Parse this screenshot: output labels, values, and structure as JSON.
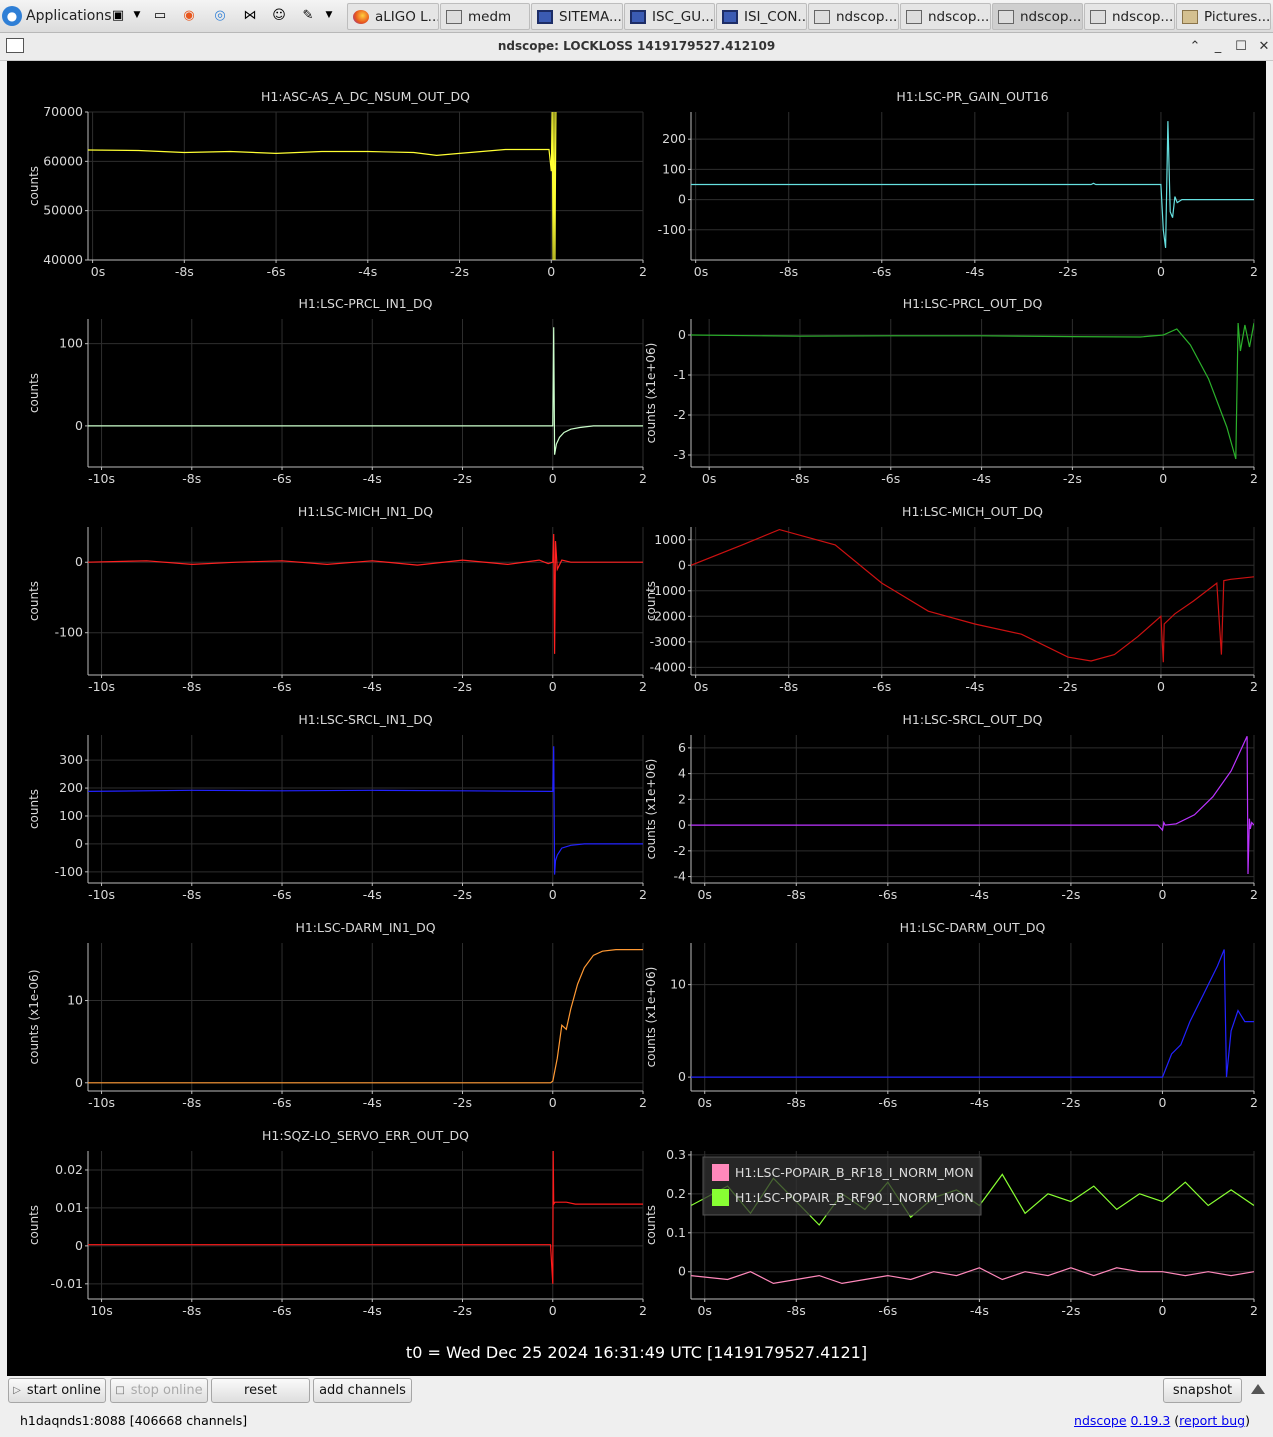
{
  "taskbar": {
    "apps_label": "Applications",
    "tasks": [
      {
        "label": "aLIGO L...",
        "icon": "firefox-icon"
      },
      {
        "label": "medm",
        "icon": "window-icon"
      },
      {
        "label": "SITEMA...",
        "icon": "terminal-icon"
      },
      {
        "label": "ISC_GU...",
        "icon": "terminal-icon"
      },
      {
        "label": "ISI_CON...",
        "icon": "terminal-icon"
      },
      {
        "label": "ndscop...",
        "icon": "window-icon"
      },
      {
        "label": "ndscop...",
        "icon": "window-icon"
      },
      {
        "label": "ndscop...",
        "icon": "window-icon"
      },
      {
        "label": "ndscop...",
        "icon": "window-icon"
      },
      {
        "label": "Pictures...",
        "icon": "folder-icon"
      }
    ]
  },
  "window": {
    "title": "ndscope: LOCKLOSS 1419179527.412109"
  },
  "t0_label": "t0 = Wed Dec 25 2024 16:31:49 UTC [1419179527.4121]",
  "buttons": {
    "start_online": "start online",
    "stop_online": "stop online",
    "reset": "reset",
    "add_channels": "add channels",
    "snapshot": "snapshot"
  },
  "status": {
    "server": "h1daqnds1:8088  [406668 channels]",
    "app_name": "ndscope",
    "version": "0.19.3",
    "report_open": "(",
    "report_bug": "report bug",
    "report_close": ")"
  },
  "colors": {
    "plot_background": "#000000",
    "grid": "#2e2e2e",
    "axis_text": "#d9d9d9"
  },
  "chart_data": [
    {
      "type": "line",
      "title": "H1:ASC-AS_A_DC_NSUM_OUT_DQ",
      "ylabel": "counts",
      "color": "#ffff33",
      "xlim": [
        -10.1,
        2
      ],
      "ylim": [
        40000,
        70000
      ],
      "yticks": [
        40000,
        50000,
        60000,
        70000
      ],
      "xticks": [
        -10,
        -8,
        -6,
        -4,
        -2,
        0,
        2
      ],
      "xtick_labels": [
        "0s",
        "-8s",
        "-6s",
        "-4s",
        "-2s",
        "0",
        "2"
      ],
      "x": [
        -10.1,
        -9,
        -8,
        -7,
        -6,
        -5,
        -4,
        -3,
        -2.5,
        -2,
        -1,
        -0.05,
        0,
        0.02,
        0.04,
        0.06,
        0.08,
        0.1
      ],
      "y": [
        62300,
        62200,
        61800,
        62000,
        61600,
        62000,
        62000,
        61800,
        61200,
        61600,
        62400,
        62400,
        58000,
        70000,
        40000,
        70000,
        40000,
        70000
      ]
    },
    {
      "type": "line",
      "title": "H1:LSC-PR_GAIN_OUT16",
      "ylabel": "",
      "color": "#66e0e0",
      "xlim": [
        -10.1,
        2
      ],
      "ylim": [
        -200,
        290
      ],
      "yticks": [
        -100,
        0,
        100,
        200
      ],
      "xticks": [
        -10,
        -8,
        -6,
        -4,
        -2,
        0,
        2
      ],
      "xtick_labels": [
        "0s",
        "-8s",
        "-6s",
        "-4s",
        "-2s",
        "0",
        "2"
      ],
      "x": [
        -10.1,
        -2,
        -1.5,
        -1.45,
        -1.4,
        0,
        0.05,
        0.1,
        0.15,
        0.2,
        0.25,
        0.3,
        0.35,
        0.45,
        0.6,
        0.8,
        1,
        2
      ],
      "y": [
        50,
        50,
        50,
        54,
        50,
        50,
        -100,
        -160,
        260,
        -40,
        -60,
        10,
        -10,
        0,
        0,
        0,
        0,
        0
      ]
    },
    {
      "type": "line",
      "title": "H1:LSC-PRCL_IN1_DQ",
      "ylabel": "counts",
      "color": "#ccffcc",
      "xlim": [
        -10.3,
        2
      ],
      "ylim": [
        -50,
        130
      ],
      "yticks": [
        0,
        100
      ],
      "xticks": [
        -10,
        -8,
        -6,
        -4,
        -2,
        0,
        2
      ],
      "xtick_labels": [
        "-10s",
        "-8s",
        "-6s",
        "-4s",
        "-2s",
        "0",
        "2"
      ],
      "x": [
        -10.3,
        -5,
        -0.05,
        0,
        0.02,
        0.04,
        0.08,
        0.15,
        0.25,
        0.4,
        0.6,
        0.9,
        2
      ],
      "y": [
        0,
        0,
        0,
        0,
        120,
        -35,
        -22,
        -14,
        -8,
        -4,
        -2,
        0,
        0
      ]
    },
    {
      "type": "line",
      "title": "H1:LSC-PRCL_OUT_DQ",
      "ylabel": "counts (x1e+06)",
      "color": "#2bb02b",
      "xlim": [
        -10.4,
        2
      ],
      "ylim": [
        -3.3,
        0.4
      ],
      "yticks": [
        -3,
        -2,
        -1,
        0
      ],
      "xticks": [
        -10,
        -8,
        -6,
        -4,
        -2,
        0,
        2
      ],
      "xtick_labels": [
        "0s",
        "-8s",
        "-6s",
        "-4s",
        "-2s",
        "0",
        "2"
      ],
      "x": [
        -10.4,
        -8,
        -6,
        -4,
        -2,
        -0.5,
        0,
        0.3,
        0.6,
        1,
        1.4,
        1.6,
        1.65,
        1.7,
        1.8,
        1.9,
        2
      ],
      "y": [
        0,
        -0.03,
        -0.02,
        -0.02,
        -0.04,
        -0.05,
        0,
        0.15,
        -0.25,
        -1.1,
        -2.3,
        -3.1,
        0.3,
        -0.4,
        0.25,
        -0.3,
        0.3
      ]
    },
    {
      "type": "line",
      "title": "H1:LSC-MICH_IN1_DQ",
      "ylabel": "counts",
      "color": "#ff2020",
      "xlim": [
        -10.3,
        2
      ],
      "ylim": [
        -160,
        50
      ],
      "yticks": [
        -100,
        0
      ],
      "xticks": [
        -10,
        -8,
        -6,
        -4,
        -2,
        0,
        2
      ],
      "xtick_labels": [
        "-10s",
        "-8s",
        "-6s",
        "-4s",
        "-2s",
        "0",
        "2"
      ],
      "x": [
        -10.3,
        -9,
        -8,
        -7,
        -6,
        -5,
        -4,
        -3,
        -2,
        -1,
        -0.3,
        -0.1,
        0,
        0.02,
        0.04,
        0.06,
        0.1,
        0.2,
        0.4,
        2
      ],
      "y": [
        0,
        2,
        -3,
        0,
        2,
        -3,
        2,
        -4,
        3,
        -3,
        3,
        -2,
        0,
        40,
        -130,
        30,
        -10,
        3,
        0,
        0
      ]
    },
    {
      "type": "line",
      "title": "H1:LSC-MICH_OUT_DQ",
      "ylabel": "counts",
      "color": "#cc1111",
      "xlim": [
        -10.1,
        2
      ],
      "ylim": [
        -4300,
        1500
      ],
      "yticks": [
        -4000,
        -3000,
        -2000,
        -1000,
        0,
        1000
      ],
      "xticks": [
        -10,
        -8,
        -6,
        -4,
        -2,
        0,
        2
      ],
      "xtick_labels": [
        "0s",
        "-8s",
        "-6s",
        "-4s",
        "-2s",
        "0",
        "2"
      ],
      "x": [
        -10.1,
        -9,
        -8.2,
        -7,
        -6,
        -5,
        -4,
        -3,
        -2,
        -1.5,
        -1,
        -0.5,
        0,
        0.05,
        0.07,
        0.3,
        0.7,
        1.2,
        1.3,
        1.35,
        1.5,
        2
      ],
      "y": [
        0,
        800,
        1400,
        800,
        -700,
        -1800,
        -2300,
        -2700,
        -3600,
        -3750,
        -3500,
        -2800,
        -2000,
        -3800,
        -2300,
        -1900,
        -1400,
        -700,
        -3500,
        -600,
        -550,
        -450
      ]
    },
    {
      "type": "line",
      "title": "H1:LSC-SRCL_IN1_DQ",
      "ylabel": "counts",
      "color": "#2222ff",
      "xlim": [
        -10.3,
        2
      ],
      "ylim": [
        -140,
        390
      ],
      "yticks": [
        -100,
        0,
        100,
        200,
        300
      ],
      "xticks": [
        -10,
        -8,
        -6,
        -4,
        -2,
        0,
        2
      ],
      "xtick_labels": [
        "-10s",
        "-8s",
        "-6s",
        "-4s",
        "-2s",
        "0",
        "2"
      ],
      "x": [
        -10.3,
        -8,
        -6,
        -4,
        -2,
        -0.05,
        0,
        0.02,
        0.04,
        0.06,
        0.1,
        0.2,
        0.4,
        0.7,
        2
      ],
      "y": [
        188,
        192,
        190,
        192,
        190,
        188,
        188,
        350,
        -110,
        -60,
        -40,
        -15,
        -5,
        0,
        0
      ]
    },
    {
      "type": "line",
      "title": "H1:LSC-SRCL_OUT_DQ",
      "ylabel": "counts (x1e+06)",
      "color": "#bb33ff",
      "xlim": [
        -10.3,
        2
      ],
      "ylim": [
        -4.5,
        7
      ],
      "yticks": [
        -4,
        -2,
        0,
        2,
        4,
        6
      ],
      "xticks": [
        -10,
        -8,
        -6,
        -4,
        -2,
        0,
        2
      ],
      "xtick_labels": [
        "0s",
        "-8s",
        "-6s",
        "-4s",
        "-2s",
        "0",
        "2"
      ],
      "x": [
        -10.3,
        -5,
        -0.1,
        0,
        0.03,
        0.06,
        0.3,
        0.7,
        1.1,
        1.5,
        1.85,
        1.87,
        1.9,
        1.92,
        1.95,
        2
      ],
      "y": [
        0,
        0,
        0,
        -0.4,
        0.2,
        0,
        0.1,
        0.8,
        2.2,
        4.2,
        6.9,
        -3.8,
        0.5,
        -0.3,
        0.2,
        0
      ]
    },
    {
      "type": "line",
      "title": "H1:LSC-DARM_IN1_DQ",
      "ylabel": "counts (x1e-06)",
      "color": "#ff9933",
      "xlim": [
        -10.3,
        2
      ],
      "ylim": [
        -1,
        17
      ],
      "yticks": [
        0,
        10
      ],
      "xticks": [
        -10,
        -8,
        -6,
        -4,
        -2,
        0,
        2
      ],
      "xtick_labels": [
        "-10s",
        "-8s",
        "-6s",
        "-4s",
        "-2s",
        "0",
        "2"
      ],
      "x": [
        -10.3,
        -5,
        -0.05,
        0,
        0.1,
        0.2,
        0.3,
        0.4,
        0.55,
        0.7,
        0.9,
        1.1,
        1.4,
        2
      ],
      "y": [
        0,
        0,
        0,
        0.2,
        3,
        7,
        6.5,
        9,
        12,
        14,
        15.5,
        16,
        16.2,
        16.2
      ]
    },
    {
      "type": "line",
      "title": "H1:LSC-DARM_OUT_DQ",
      "ylabel": "counts (x1e+06)",
      "color": "#2222ff",
      "xlim": [
        -10.3,
        2
      ],
      "ylim": [
        -1.5,
        14.5
      ],
      "yticks": [
        0,
        10
      ],
      "xticks": [
        -10,
        -8,
        -6,
        -4,
        -2,
        0,
        2
      ],
      "xtick_labels": [
        "0s",
        "-8s",
        "-6s",
        "-4s",
        "-2s",
        "0",
        "2"
      ],
      "x": [
        -10.3,
        -5,
        -0.1,
        0,
        0.2,
        0.4,
        0.6,
        0.9,
        1.2,
        1.35,
        1.4,
        1.5,
        1.65,
        1.8,
        2
      ],
      "y": [
        0,
        0,
        0,
        0,
        2.5,
        3.5,
        6,
        9,
        12,
        13.8,
        0,
        5,
        7.2,
        6,
        6
      ]
    },
    {
      "type": "line",
      "title": "H1:SQZ-LO_SERVO_ERR_OUT_DQ",
      "ylabel": "counts",
      "color": "#ff1a1a",
      "xlim": [
        -10.3,
        2
      ],
      "ylim": [
        -0.014,
        0.025
      ],
      "yticks": [
        -0.01,
        0,
        0.01,
        0.02
      ],
      "ytick_labels": [
        "-0.01",
        "0",
        "0.01",
        "0.02"
      ],
      "xticks": [
        -10,
        -8,
        -6,
        -4,
        -2,
        0,
        2
      ],
      "xtick_labels": [
        "10s",
        "-8s",
        "-6s",
        "-4s",
        "-2s",
        "0",
        "2"
      ],
      "x": [
        -10.3,
        -8,
        -6,
        -4,
        -2,
        -0.05,
        0,
        0.01,
        0.02,
        0.05,
        0.3,
        0.5,
        1,
        2
      ],
      "y": [
        0.0003,
        0.0003,
        0.0003,
        0.0003,
        0.0003,
        0.0003,
        -0.01,
        0.025,
        0.011,
        0.0115,
        0.0115,
        0.011,
        0.011,
        0.011
      ]
    },
    {
      "type": "line",
      "title": "",
      "ylabel": "counts",
      "xlim": [
        -10.3,
        2
      ],
      "ylim": [
        -0.07,
        0.31
      ],
      "yticks": [
        0,
        0.1,
        0.2,
        0.3
      ],
      "ytick_labels": [
        "0",
        "0.1",
        "0.2",
        "0.3"
      ],
      "xticks": [
        -10,
        -8,
        -6,
        -4,
        -2,
        0,
        2
      ],
      "xtick_labels": [
        "0s",
        "-8s",
        "-6s",
        "-4s",
        "-2s",
        "0",
        "2"
      ],
      "legend": "top-left",
      "series": [
        {
          "name": "H1:LSC-POPAIR_B_RF18_I_NORM_MON",
          "color": "#ff88bb",
          "x": [
            -10.3,
            -9.5,
            -9,
            -8.5,
            -8,
            -7.5,
            -7,
            -6.5,
            -6,
            -5.5,
            -5,
            -4.5,
            -4,
            -3.5,
            -3,
            -2.5,
            -2,
            -1.5,
            -1,
            -0.5,
            0,
            0.5,
            1,
            1.5,
            2
          ],
          "y": [
            -0.01,
            -0.02,
            0,
            -0.03,
            -0.02,
            -0.01,
            -0.03,
            -0.02,
            -0.01,
            -0.02,
            0,
            -0.01,
            0.01,
            -0.02,
            0,
            -0.01,
            0.01,
            -0.01,
            0.01,
            0,
            0,
            -0.01,
            0,
            -0.01,
            0
          ]
        },
        {
          "name": "H1:LSC-POPAIR_B_RF90_I_NORM_MON",
          "color": "#88ff33",
          "x": [
            -10.3,
            -9.5,
            -9,
            -8.5,
            -8,
            -7.5,
            -7,
            -6.5,
            -6,
            -5.5,
            -5,
            -4.5,
            -4,
            -3.5,
            -3,
            -2.5,
            -2,
            -1.5,
            -1,
            -0.5,
            0,
            0.5,
            1,
            1.5,
            2
          ],
          "y": [
            0.17,
            0.22,
            0.15,
            0.24,
            0.18,
            0.12,
            0.2,
            0.16,
            0.23,
            0.14,
            0.19,
            0.21,
            0.17,
            0.25,
            0.15,
            0.2,
            0.18,
            0.22,
            0.16,
            0.2,
            0.18,
            0.23,
            0.17,
            0.21,
            0.17
          ]
        }
      ]
    }
  ]
}
